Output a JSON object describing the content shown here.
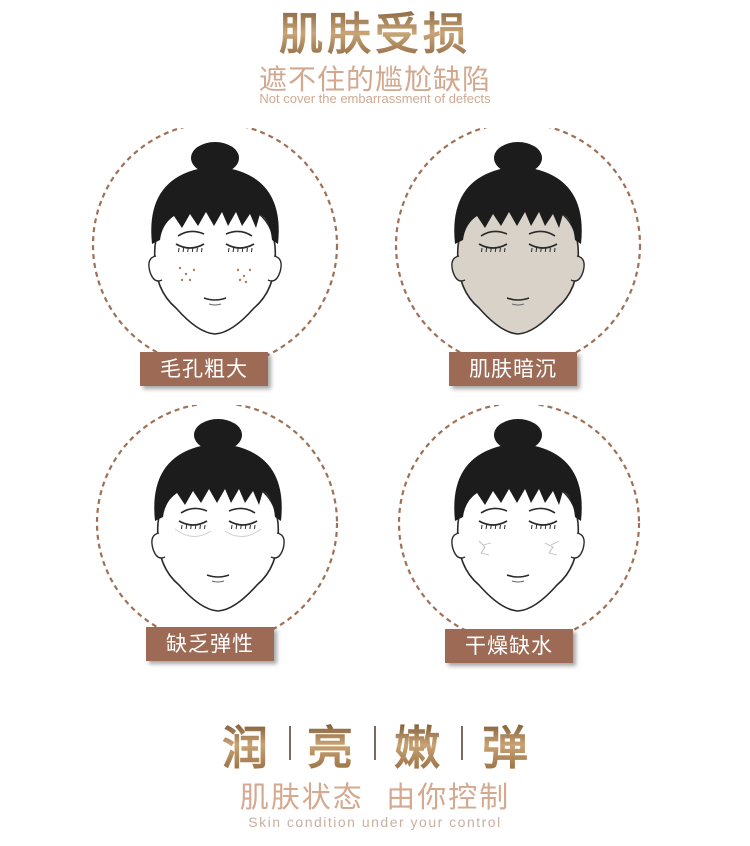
{
  "header": {
    "title": "肌肤受损",
    "subtitle": "遮不住的尴尬缺陷",
    "subtitle_en": "Not cover the embarrassment of defects"
  },
  "panels": [
    {
      "label": "毛孔粗大",
      "face_fill": "#ffffff",
      "detail": "pores-icon"
    },
    {
      "label": "肌肤暗沉",
      "face_fill": "#d8d2c9",
      "detail": "dullness-icon"
    },
    {
      "label": "缺乏弹性",
      "face_fill": "#ffffff",
      "detail": "sagging-icon"
    },
    {
      "label": "干燥缺水",
      "face_fill": "#ffffff",
      "detail": "dry-cracks-icon"
    }
  ],
  "slogan": {
    "words": [
      "润",
      "亮",
      "嫩",
      "弹"
    ],
    "line_cn": "肌肤状态  由你控制",
    "line_en": "Skin condition under your control"
  },
  "colors": {
    "label_bg": "#9d6b55",
    "circle_dash": "#a07055",
    "hair": "#1c1c1c",
    "accent_gold": "#b08a5e"
  }
}
